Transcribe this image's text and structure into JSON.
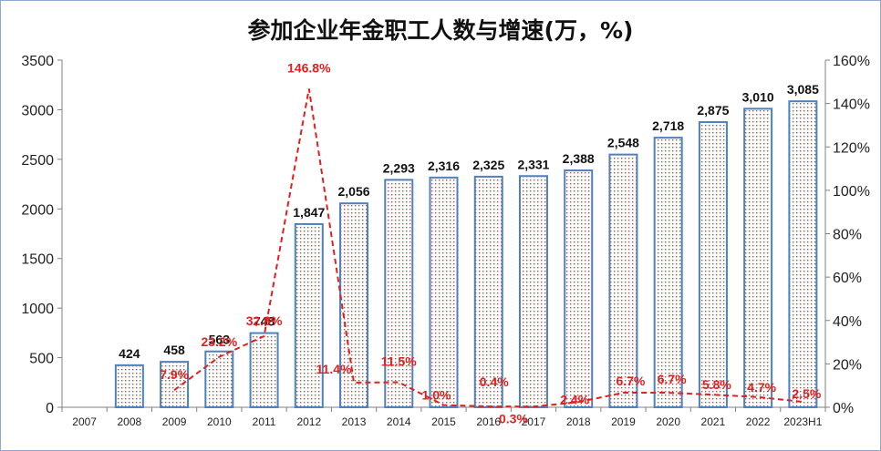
{
  "chart_data": {
    "type": "bar",
    "title": "参加企业年金职工人数与增速(万，%)",
    "categories": [
      "2007",
      "2008",
      "2009",
      "2010",
      "2011",
      "2012",
      "2013",
      "2014",
      "2015",
      "2016",
      "2017",
      "2018",
      "2019",
      "2020",
      "2021",
      "2022",
      "2023H1"
    ],
    "ylim": [
      0,
      3500
    ],
    "y2lim": [
      0,
      160
    ],
    "yticks": [
      0,
      500,
      1000,
      1500,
      2000,
      2500,
      3000,
      3500
    ],
    "y2ticks": [
      "0%",
      "20%",
      "40%",
      "60%",
      "80%",
      "100%",
      "120%",
      "140%",
      "160%"
    ],
    "grid": false,
    "series": [
      {
        "type": "bar",
        "axis": "left",
        "values": [
          null,
          424,
          458,
          563,
          748,
          1847,
          2056,
          2293,
          2316,
          2325,
          2331,
          2388,
          2548,
          2718,
          2875,
          3010,
          3085
        ],
        "labels": [
          "",
          "424",
          "458",
          "563",
          "748",
          "1,847",
          "2,056",
          "2,293",
          "2,316",
          "2,325",
          "2,331",
          "2,388",
          "2,548",
          "2,718",
          "2,875",
          "3,010",
          "3,085"
        ],
        "color": "#4f81bd",
        "pattern_color": "#c0504d"
      },
      {
        "type": "line",
        "axis": "right",
        "style": "dashed",
        "values": [
          null,
          null,
          7.9,
          23.2,
          32.8,
          146.8,
          11.4,
          11.5,
          1.0,
          0.4,
          0.3,
          2.4,
          6.7,
          6.7,
          5.8,
          4.7,
          2.5
        ],
        "labels": [
          "",
          "",
          "7.9%",
          "23.2%",
          "32.8%",
          "146.8%",
          "11.4%",
          "11.5%",
          "1.0%",
          "0.4%",
          "0.3%",
          "2.4%",
          "6.7%",
          "6.7%",
          "5.8%",
          "4.7%",
          "2.5%"
        ],
        "color": "#e02020"
      }
    ]
  }
}
